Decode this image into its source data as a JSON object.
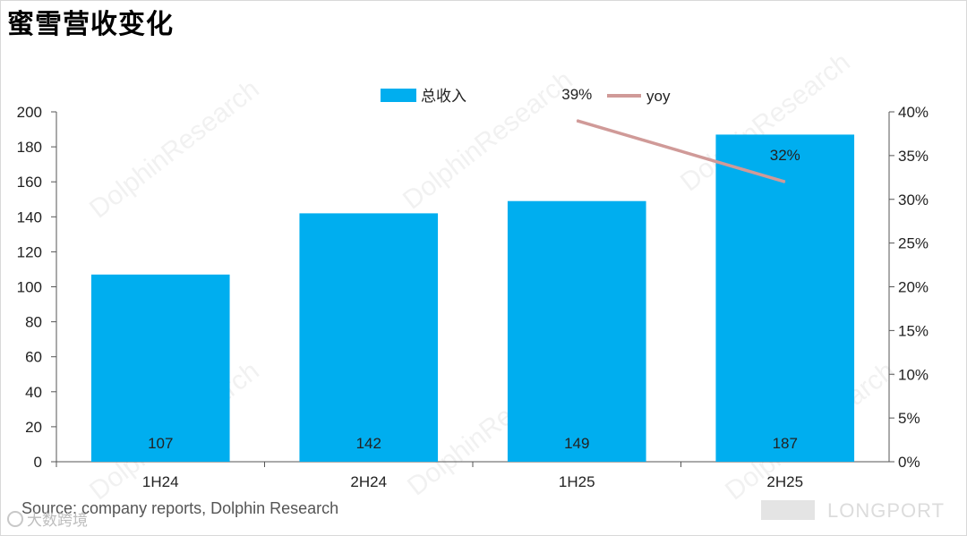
{
  "title": "蜜雪营收变化",
  "source": "Source: company reports, Dolphin Research",
  "credit": "大数跨境",
  "brand": "LONGPORT",
  "watermark": "DolphinResearch",
  "colors": {
    "bar": "#00AEEF",
    "line": "#D09A98",
    "axis": "#555555",
    "text": "#222222"
  },
  "chart_data": {
    "type": "bar+line",
    "categories": [
      "1H24",
      "2H24",
      "1H25",
      "2H25"
    ],
    "series": [
      {
        "name": "总收入",
        "type": "bar",
        "axis": "left",
        "values": [
          107,
          142,
          149,
          187
        ]
      },
      {
        "name": "yoy",
        "type": "line",
        "axis": "right",
        "values": [
          null,
          null,
          39,
          32
        ],
        "value_labels": [
          null,
          null,
          "39%",
          "32%"
        ]
      }
    ],
    "y_left": {
      "min": 0,
      "max": 200,
      "step": 20,
      "ticks": [
        "0",
        "20",
        "40",
        "60",
        "80",
        "100",
        "120",
        "140",
        "160",
        "180",
        "200"
      ]
    },
    "y_right": {
      "min": 0,
      "max": 40,
      "step": 5,
      "ticks": [
        "0%",
        "5%",
        "10%",
        "15%",
        "20%",
        "25%",
        "30%",
        "35%",
        "40%"
      ]
    },
    "legend": {
      "position": "top",
      "labels": [
        "总收入",
        "yoy"
      ]
    }
  }
}
